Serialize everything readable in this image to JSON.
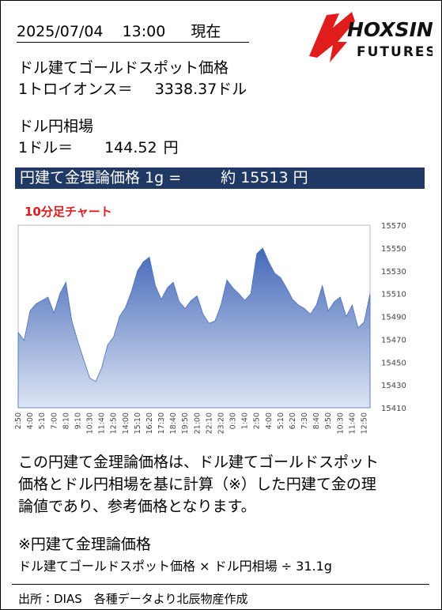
{
  "header": {
    "date": "2025/07/04",
    "time": "13:00",
    "status": "現在",
    "logo": "HOXSIN",
    "logo_sub": "FUTURES"
  },
  "gold": {
    "label": "ドル建てゴールドスポット価格",
    "unit_label": "1トロイオンス＝",
    "value": "3338.37",
    "unit": "ドル"
  },
  "fx": {
    "label": "ドル円相場",
    "unit_label": "1ドル＝",
    "value": "144.52",
    "unit": "円"
  },
  "banner": {
    "label": "円建て金理論価格 1g =",
    "value": "約 15513 円"
  },
  "chart_data": {
    "type": "area",
    "title": "10分足チャート",
    "color": "#4a6fbe",
    "grid": false,
    "y_axis_side": "right",
    "categories": [
      "2:50",
      null,
      "4:00",
      null,
      "5:10",
      null,
      "7:00",
      null,
      "8:10",
      null,
      "9:10",
      null,
      "10:30",
      null,
      "11:40",
      null,
      "12:50",
      null,
      "14:00",
      null,
      "15:10",
      null,
      "16:20",
      null,
      "17:30",
      null,
      "18:40",
      null,
      "19:50",
      null,
      "21:00",
      null,
      "22:10",
      null,
      "23:20",
      null,
      "0:30",
      null,
      "1:40",
      null,
      "2:50",
      null,
      "4:00",
      null,
      "5:10",
      null,
      "6:20",
      null,
      "7:30",
      null,
      "8:40",
      null,
      "9:50",
      null,
      "10:30",
      null,
      "11:40",
      null,
      "12:50",
      null
    ],
    "values": [
      15476,
      15469,
      15495,
      15501,
      15504,
      15507,
      15493,
      15510,
      15520,
      15486,
      15468,
      15452,
      15436,
      15433,
      15445,
      15465,
      15472,
      15490,
      15498,
      15512,
      15530,
      15538,
      15542,
      15517,
      15505,
      15515,
      15520,
      15503,
      15497,
      15504,
      15508,
      15492,
      15484,
      15486,
      15500,
      15522,
      15515,
      15510,
      15504,
      15510,
      15545,
      15550,
      15538,
      15528,
      15524,
      15515,
      15505,
      15500,
      15497,
      15492,
      15500,
      15517,
      15495,
      15503,
      15507,
      15490,
      15500,
      15480,
      15485,
      15510
    ],
    "ylim": [
      15410,
      15570
    ],
    "yticks": [
      15410,
      15430,
      15450,
      15470,
      15490,
      15510,
      15530,
      15550,
      15570
    ]
  },
  "note": {
    "lines": [
      "この円建て金理論価格は、ドル建てゴールドスポット",
      "価格とドル円相場を基に計算（※）した円建て金の理",
      "論値であり、参考価格となります。"
    ]
  },
  "formula": {
    "title": "※円建て金理論価格",
    "text": "ドル建てゴールドスポット価格 × ドル円相場 ÷ 31.1g"
  },
  "source": "出所：DIAS　各種データより北辰物産作成"
}
